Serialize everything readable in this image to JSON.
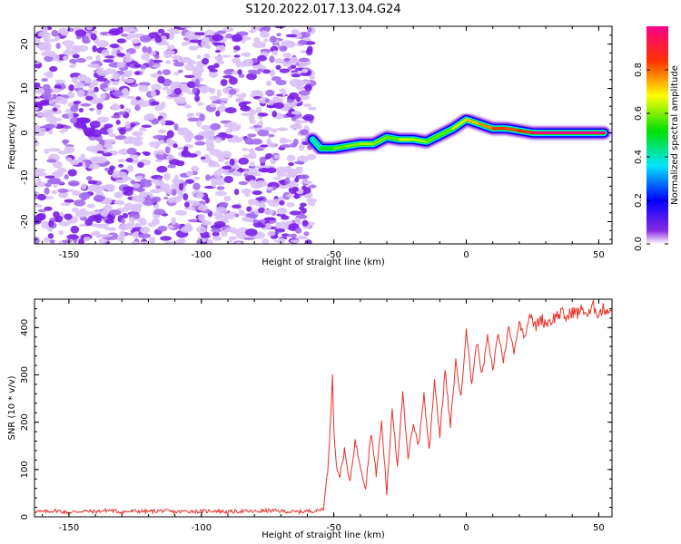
{
  "page": {
    "title": "S120.2022.017.13.04.G24"
  },
  "chart_data": [
    {
      "type": "heatmap",
      "xlabel": "Height of straight line (km)",
      "ylabel": "Frequency (Hz)",
      "xlim": [
        -163,
        55
      ],
      "ylim": [
        -25,
        24
      ],
      "xticks": [
        -150,
        -100,
        -50,
        0,
        50
      ],
      "yticks": [
        -20,
        -10,
        0,
        10,
        20
      ],
      "colorbar": {
        "label": "Normalized spectral amplitude",
        "range": [
          0.0,
          1.0
        ],
        "ticks": [
          0.0,
          0.2,
          0.4,
          0.6,
          0.8
        ],
        "colormap": "rainbow (violet-blue-cyan-green-yellow-red-magenta)"
      },
      "noise_region_x": [
        -163,
        -58
      ],
      "signal_track": {
        "x": [
          -58,
          -55,
          -50,
          -45,
          -40,
          -35,
          -30,
          -25,
          -20,
          -15,
          -10,
          -5,
          0,
          5,
          10,
          15,
          20,
          25,
          30,
          40,
          50,
          52
        ],
        "freq": [
          -1.5,
          -3.5,
          -3.5,
          -3.0,
          -2.5,
          -2.5,
          -1.0,
          -1.5,
          -1.5,
          -2.0,
          -0.5,
          1.0,
          3.0,
          2.0,
          1.0,
          1.0,
          0.5,
          0.0,
          0.0,
          0.0,
          0.0,
          0.0
        ],
        "amplitude": [
          0.3,
          0.45,
          0.55,
          0.6,
          0.6,
          0.65,
          0.55,
          0.6,
          0.7,
          0.55,
          0.6,
          0.55,
          0.75,
          0.7,
          0.85,
          0.85,
          0.8,
          0.95,
          1.0,
          1.0,
          1.0,
          1.0
        ]
      }
    },
    {
      "type": "line",
      "xlabel": "Height of straight line (km)",
      "ylabel": "SNR (10 * v/v)",
      "xlim": [
        -163,
        55
      ],
      "ylim": [
        0,
        460
      ],
      "xticks": [
        -150,
        -100,
        -50,
        0,
        50
      ],
      "yticks": [
        0,
        100,
        200,
        300,
        400
      ],
      "series": [
        {
          "color": "#e8332b",
          "x": [
            -163,
            -160,
            -155,
            -150,
            -145,
            -140,
            -135,
            -130,
            -125,
            -120,
            -115,
            -110,
            -105,
            -100,
            -95,
            -90,
            -85,
            -80,
            -75,
            -70,
            -65,
            -60,
            -56,
            -54,
            -53,
            -52,
            -51,
            -50.5,
            -50,
            -49,
            -48,
            -46,
            -44,
            -42,
            -40,
            -38,
            -36,
            -34,
            -32,
            -30,
            -28,
            -26,
            -24,
            -22,
            -20,
            -18,
            -16,
            -14,
            -12,
            -10,
            -8,
            -6,
            -4,
            -2,
            0,
            2,
            4,
            6,
            8,
            10,
            12,
            14,
            16,
            18,
            20,
            22,
            24,
            26,
            28,
            30,
            32,
            34,
            36,
            38,
            40,
            42,
            44,
            46,
            48,
            50,
            52,
            55
          ],
          "values": [
            12,
            10,
            13,
            9,
            12,
            11,
            14,
            10,
            12,
            11,
            13,
            10,
            12,
            11,
            13,
            10,
            12,
            11,
            13,
            12,
            10,
            12,
            13,
            18,
            60,
            120,
            240,
            308,
            180,
            110,
            80,
            140,
            70,
            160,
            110,
            60,
            180,
            90,
            200,
            50,
            230,
            110,
            260,
            120,
            200,
            150,
            260,
            140,
            290,
            170,
            310,
            190,
            330,
            250,
            400,
            280,
            370,
            300,
            380,
            310,
            390,
            330,
            400,
            350,
            410,
            380,
            430,
            400,
            420,
            410,
            415,
            425,
            430,
            420,
            435,
            430,
            440,
            425,
            445,
            430,
            440,
            435
          ]
        }
      ]
    }
  ]
}
